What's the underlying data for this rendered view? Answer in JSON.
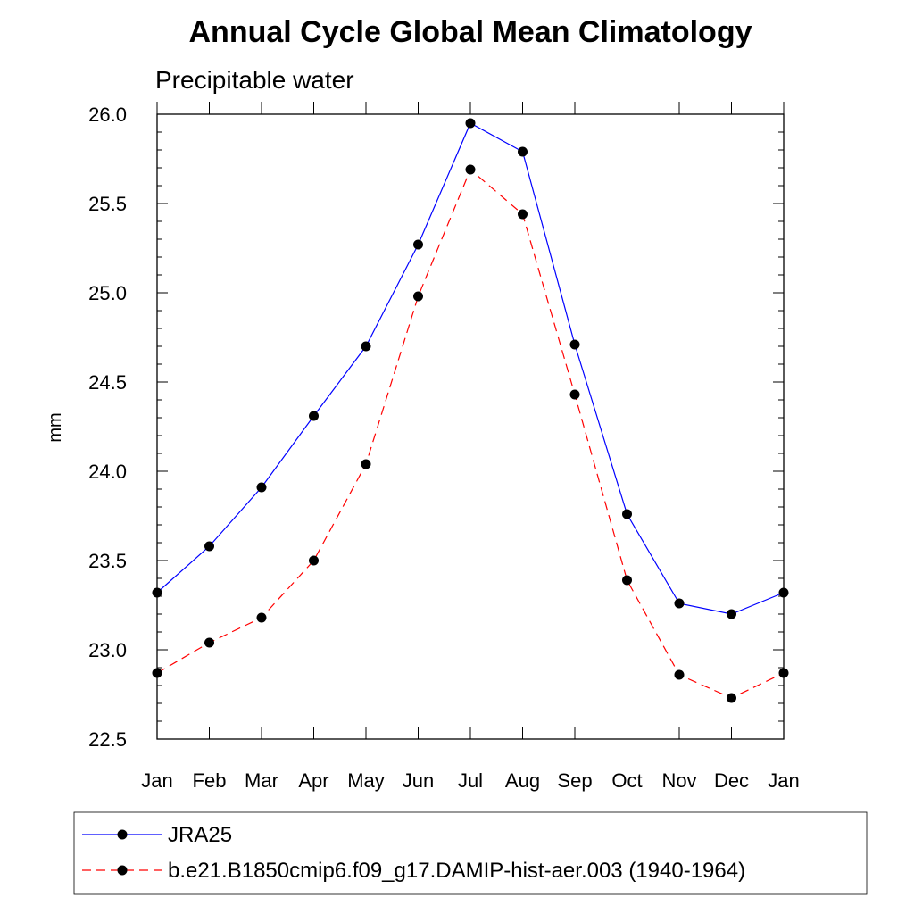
{
  "chart_data": {
    "type": "line",
    "title": "Annual Cycle Global Mean Climatology",
    "subtitle": "Precipitable water",
    "xlabel": "",
    "ylabel": "mm",
    "categories": [
      "Jan",
      "Feb",
      "Mar",
      "Apr",
      "May",
      "Jun",
      "Jul",
      "Aug",
      "Sep",
      "Oct",
      "Nov",
      "Dec",
      "Jan"
    ],
    "ylim": [
      22.5,
      26.0
    ],
    "yticks": [
      "22.5",
      "23.0",
      "23.5",
      "24.0",
      "24.5",
      "25.0",
      "25.5",
      "26.0"
    ],
    "grid": false,
    "legend_placement": "bottom",
    "series": [
      {
        "name": "JRA25",
        "color": "#0000ff",
        "dash": "solid",
        "values": [
          23.32,
          23.58,
          23.91,
          24.31,
          24.7,
          25.27,
          25.95,
          25.79,
          24.71,
          23.76,
          23.26,
          23.2,
          23.32
        ]
      },
      {
        "name": "b.e21.B1850cmip6.f09_g17.DAMIP-hist-aer.003 (1940-1964)",
        "color": "#ff0000",
        "dash": "dashed",
        "values": [
          22.87,
          23.04,
          23.18,
          23.5,
          24.04,
          24.98,
          25.69,
          25.44,
          24.43,
          23.39,
          22.86,
          22.73,
          22.87
        ]
      }
    ]
  }
}
